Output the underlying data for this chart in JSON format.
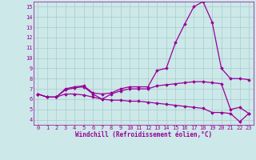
{
  "xlabel": "Windchill (Refroidissement éolien,°C)",
  "ylabel": "",
  "x": [
    0,
    1,
    2,
    3,
    4,
    5,
    6,
    7,
    8,
    9,
    10,
    11,
    12,
    13,
    14,
    15,
    16,
    17,
    18,
    19,
    20,
    21,
    22,
    23
  ],
  "line1": [
    6.5,
    6.2,
    6.2,
    7.0,
    7.2,
    7.3,
    6.6,
    6.5,
    6.6,
    7.0,
    7.2,
    7.2,
    7.2,
    8.8,
    9.0,
    11.5,
    13.3,
    15.0,
    15.5,
    13.5,
    9.0,
    8.0,
    8.0,
    7.9
  ],
  "line2": [
    6.5,
    6.2,
    6.2,
    6.9,
    7.1,
    7.2,
    6.5,
    6.0,
    6.5,
    6.8,
    7.0,
    7.0,
    7.0,
    7.3,
    7.4,
    7.5,
    7.6,
    7.7,
    7.7,
    7.6,
    7.5,
    5.0,
    5.2,
    4.6
  ],
  "line3": [
    6.5,
    6.2,
    6.2,
    6.5,
    6.5,
    6.4,
    6.2,
    6.0,
    5.9,
    5.9,
    5.8,
    5.8,
    5.7,
    5.6,
    5.5,
    5.4,
    5.3,
    5.2,
    5.1,
    4.7,
    4.7,
    4.6,
    3.8,
    4.6
  ],
  "line_color": "#990099",
  "bg_color": "#cce8e8",
  "grid_color": "#aacccc",
  "ylim_min": 3.5,
  "ylim_max": 15.5,
  "yticks": [
    4,
    5,
    6,
    7,
    8,
    9,
    10,
    11,
    12,
    13,
    14,
    15
  ],
  "xticks": [
    0,
    1,
    2,
    3,
    4,
    5,
    6,
    7,
    8,
    9,
    10,
    11,
    12,
    13,
    14,
    15,
    16,
    17,
    18,
    19,
    20,
    21,
    22,
    23
  ],
  "marker": "D",
  "markersize": 1.8,
  "linewidth": 0.9,
  "label_fontsize": 5.5,
  "tick_fontsize": 5.0
}
